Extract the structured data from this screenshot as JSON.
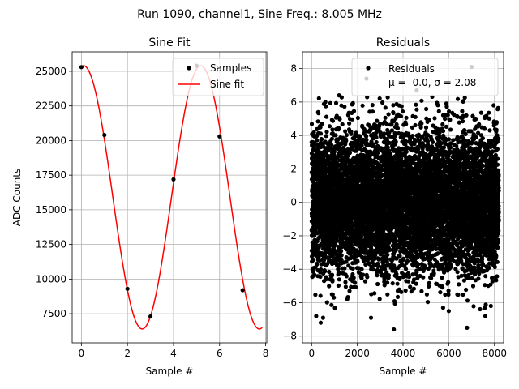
{
  "suptitle": "Run 1090, channel1, Sine Freq.: 8.005 MHz",
  "chart_data": [
    {
      "type": "line",
      "title": "Sine Fit",
      "xlabel": "Sample #",
      "ylabel": "ADC Counts",
      "xlim": [
        -0.4,
        8.05
      ],
      "ylim": [
        5400,
        26400
      ],
      "xticks": [
        0,
        2,
        4,
        6,
        8
      ],
      "yticks": [
        7500,
        10000,
        12500,
        15000,
        17500,
        20000,
        22500,
        25000
      ],
      "ytick_labels": [
        "7500",
        "10000",
        "12500",
        "15000",
        "17500",
        "20000",
        "22500",
        "25000"
      ],
      "grid": true,
      "legend_position": "top-right",
      "series": [
        {
          "name": "Samples",
          "kind": "scatter",
          "color": "#000000",
          "x": [
            0,
            1,
            2,
            3,
            4,
            5,
            6,
            7
          ],
          "y": [
            25300,
            20400,
            9300,
            7300,
            17200,
            25400,
            20300,
            9200
          ]
        },
        {
          "name": "Sine fit",
          "kind": "line",
          "color": "#ff0000",
          "model": {
            "offset": 15900,
            "amplitude": 9500,
            "period": 5.088,
            "phase": 1.453
          },
          "x_range": [
            0,
            7.85
          ]
        }
      ]
    },
    {
      "type": "scatter",
      "title": "Residuals",
      "xlabel": "Sample #",
      "ylabel": "",
      "xlim": [
        -400,
        8400
      ],
      "ylim": [
        -8.4,
        9.0
      ],
      "xticks": [
        0,
        2000,
        4000,
        6000,
        8000
      ],
      "yticks": [
        -8,
        -6,
        -4,
        -2,
        0,
        2,
        4,
        6,
        8
      ],
      "grid": true,
      "legend_position": "top-right",
      "legend_lines": [
        "Residuals",
        "μ = -0.0, σ = 2.08"
      ],
      "mean": -0.0,
      "std": 2.08,
      "n_points": 8192,
      "outliers": [
        {
          "x": 2400,
          "y": 7.4
        },
        {
          "x": 7000,
          "y": 8.1
        },
        {
          "x": 4600,
          "y": 6.7
        },
        {
          "x": 3600,
          "y": -7.6
        },
        {
          "x": 6800,
          "y": -7.5
        },
        {
          "x": 400,
          "y": -7.2
        },
        {
          "x": 500,
          "y": -6.9
        },
        {
          "x": 200,
          "y": -6.8
        },
        {
          "x": 7600,
          "y": -6.8
        },
        {
          "x": 6000,
          "y": -6.5
        },
        {
          "x": 2600,
          "y": -6.9
        },
        {
          "x": 1200,
          "y": 6.4
        },
        {
          "x": 600,
          "y": 6.0
        }
      ],
      "series": [
        {
          "name": "Residuals",
          "kind": "scatter",
          "color": "#000000"
        }
      ]
    }
  ]
}
